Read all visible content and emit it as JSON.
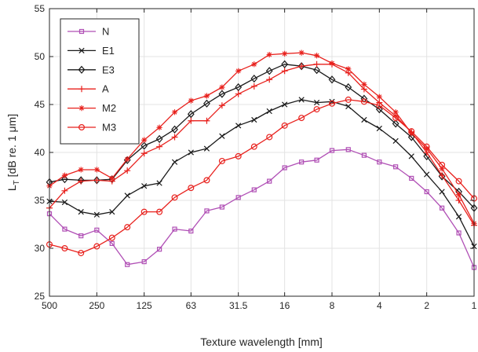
{
  "chart_data": {
    "type": "line",
    "title": "",
    "xlabel": "Texture wavelength [mm]",
    "ylabel": "L_T [dB re. 1 μm]",
    "ylabel_parts": {
      "main": "L",
      "sub": "T",
      "rest": " [dB re. 1 μm]"
    },
    "x_scale": "log2",
    "x_direction": "descending",
    "xlim": [
      500,
      1
    ],
    "ylim": [
      25,
      55
    ],
    "x_ticks": [
      500,
      250,
      125,
      63,
      31.5,
      16,
      8,
      4,
      2,
      1
    ],
    "x_tick_labels": [
      "500",
      "250",
      "125",
      "63",
      "31.5",
      "16",
      "8",
      "4",
      "2",
      "1"
    ],
    "y_ticks": [
      25,
      30,
      35,
      40,
      45,
      50,
      55
    ],
    "y_tick_labels": [
      "25",
      "30",
      "35",
      "40",
      "45",
      "50",
      "55"
    ],
    "grid": true,
    "legend_position": "top-left",
    "x": [
      500,
      400,
      315,
      250,
      200,
      160,
      125,
      100,
      80,
      63,
      50,
      40,
      31.5,
      25,
      20,
      16,
      12.5,
      10,
      8,
      6.3,
      5,
      4,
      3.15,
      2.5,
      2,
      1.6,
      1.25,
      1
    ],
    "series": [
      {
        "name": "N",
        "color": "#b04fb5",
        "marker": "square",
        "values": [
          33.6,
          32.0,
          31.3,
          31.9,
          30.5,
          28.3,
          28.6,
          29.9,
          32.0,
          31.8,
          33.9,
          34.3,
          35.3,
          36.1,
          37.0,
          38.4,
          39.0,
          39.2,
          40.2,
          40.3,
          39.7,
          39.0,
          38.5,
          37.3,
          35.9,
          34.2,
          31.6,
          28.0
        ]
      },
      {
        "name": "E1",
        "color": "#1a1a1a",
        "marker": "x",
        "values": [
          34.9,
          34.8,
          33.8,
          33.5,
          33.8,
          35.5,
          36.5,
          36.8,
          39.0,
          40.0,
          40.4,
          41.7,
          42.8,
          43.4,
          44.3,
          45.0,
          45.5,
          45.2,
          45.3,
          44.8,
          43.4,
          42.5,
          41.2,
          39.6,
          37.7,
          35.9,
          33.3,
          30.2
        ]
      },
      {
        "name": "E3",
        "color": "#1a1a1a",
        "marker": "diamond",
        "values": [
          36.9,
          37.2,
          37.1,
          37.1,
          37.2,
          39.2,
          40.7,
          41.4,
          42.4,
          44.0,
          45.1,
          46.1,
          46.8,
          47.7,
          48.5,
          49.2,
          49.0,
          48.6,
          47.6,
          46.8,
          45.6,
          44.5,
          43.0,
          41.6,
          39.6,
          37.5,
          35.9,
          34.2
        ]
      },
      {
        "name": "A",
        "color": "#e8211d",
        "marker": "plus",
        "values": [
          34.2,
          36.0,
          37.0,
          37.1,
          37.0,
          38.1,
          39.9,
          40.6,
          41.6,
          43.3,
          43.3,
          44.9,
          46.1,
          46.9,
          47.6,
          48.5,
          49.0,
          49.2,
          49.2,
          48.3,
          46.6,
          45.2,
          43.8,
          42.1,
          40.0,
          37.6,
          35.0,
          32.4
        ]
      },
      {
        "name": "M2",
        "color": "#e8211d",
        "marker": "star",
        "values": [
          36.5,
          37.6,
          38.2,
          38.2,
          37.3,
          39.3,
          41.3,
          42.6,
          44.2,
          45.4,
          45.9,
          46.8,
          48.5,
          49.2,
          50.2,
          50.3,
          50.4,
          50.1,
          49.3,
          48.7,
          47.1,
          45.8,
          44.2,
          42.0,
          40.4,
          38.3,
          35.6,
          32.6
        ]
      },
      {
        "name": "M3",
        "color": "#e8211d",
        "marker": "circle",
        "values": [
          30.4,
          30.0,
          29.5,
          30.2,
          31.1,
          32.2,
          33.8,
          33.8,
          35.3,
          36.3,
          37.1,
          39.1,
          39.6,
          40.6,
          41.6,
          42.8,
          43.6,
          44.5,
          45.1,
          45.5,
          45.3,
          44.9,
          43.6,
          42.2,
          40.6,
          38.7,
          37.0,
          35.2
        ]
      }
    ]
  }
}
